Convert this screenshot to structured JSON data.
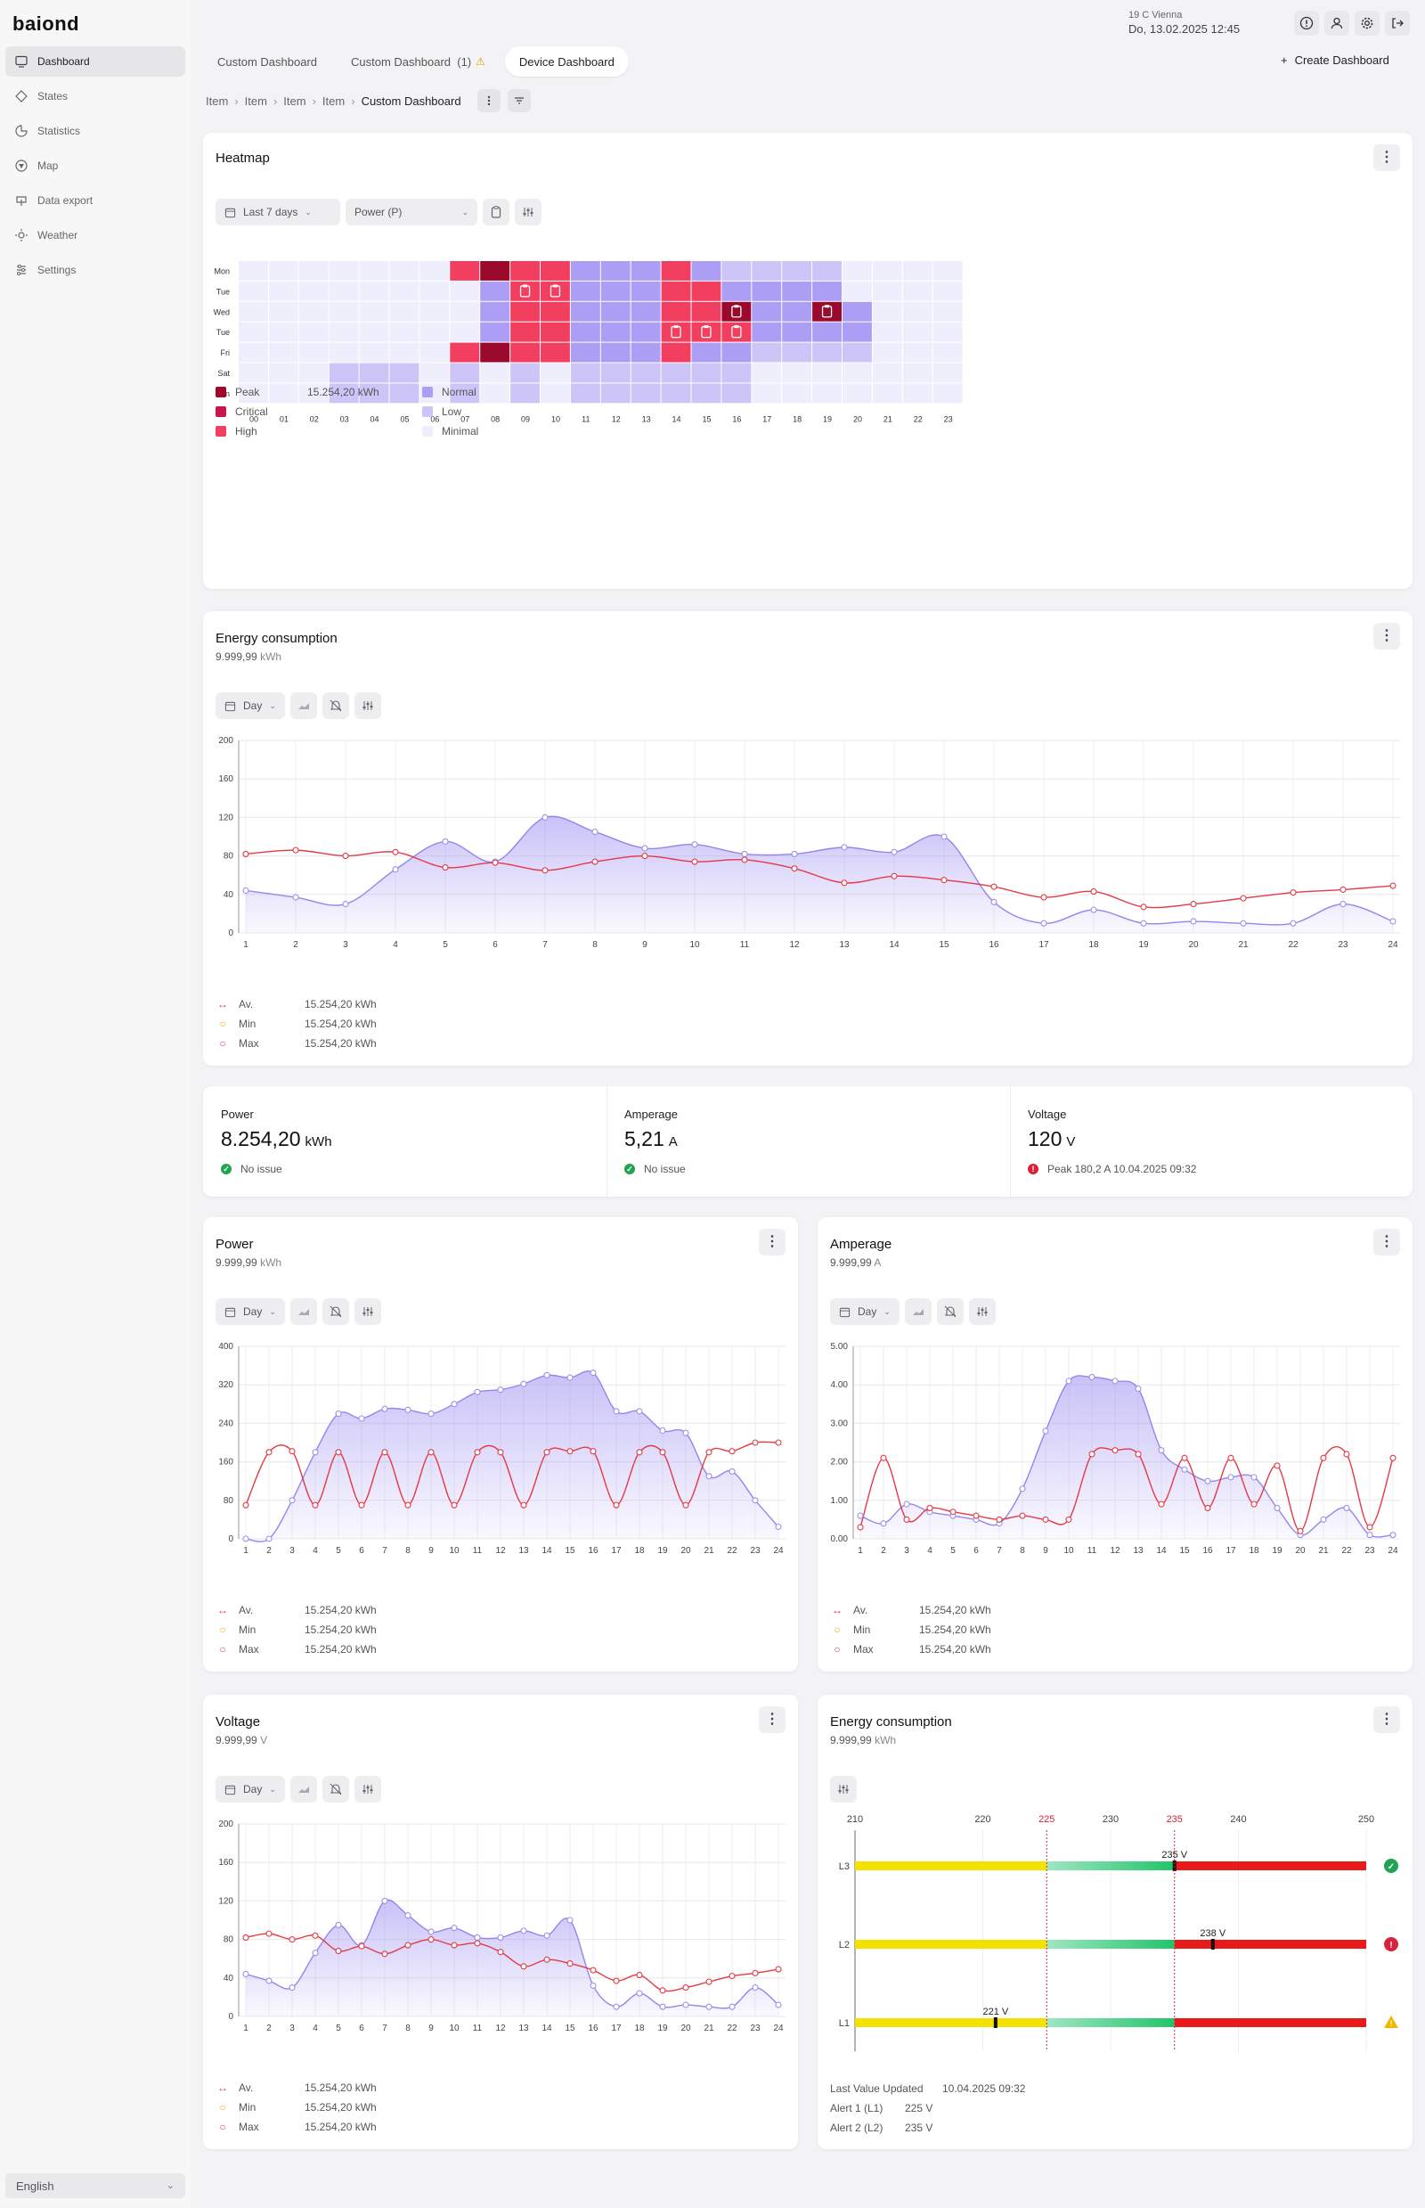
{
  "app": {
    "logo": "baiond"
  },
  "sidebar": {
    "items": [
      {
        "label": "Dashboard",
        "icon": "dashboard-icon",
        "active": true
      },
      {
        "label": "States",
        "icon": "diamond-icon"
      },
      {
        "label": "Statistics",
        "icon": "pie-chart-icon"
      },
      {
        "label": "Map",
        "icon": "map-icon"
      },
      {
        "label": "Data export",
        "icon": "export-icon"
      },
      {
        "label": "Weather",
        "icon": "sun-icon"
      },
      {
        "label": "Settings",
        "icon": "sliders-icon"
      }
    ],
    "language": "English"
  },
  "header": {
    "weather": "19 C Vienna",
    "datetime": "Do, 13.02.2025 12:45",
    "icons": [
      "info-icon",
      "user-icon",
      "gear-icon",
      "logout-icon"
    ]
  },
  "tabs": [
    {
      "label": "Custom Dashboard"
    },
    {
      "label": "Custom Dashboard",
      "count": "(1)",
      "warn": true
    },
    {
      "label": "Device Dashboard",
      "active": true
    }
  ],
  "create_label": "Create Dashboard",
  "breadcrumb": [
    "Item",
    "Item",
    "Item",
    "Item",
    "Custom Dashboard"
  ],
  "heatmap": {
    "title": "Heatmap",
    "range_label": "Last 7 days",
    "metric_label": "Power (P)",
    "days": [
      "Mon",
      "Tue",
      "Wed",
      "Tue",
      "Fri",
      "Sat",
      "Sun"
    ],
    "hours": [
      "00",
      "01",
      "02",
      "03",
      "04",
      "05",
      "06",
      "07",
      "08",
      "09",
      "10",
      "11",
      "12",
      "13",
      "14",
      "15",
      "16",
      "17",
      "18",
      "19",
      "20",
      "21",
      "22",
      "23"
    ],
    "levels": {
      "peak": "#9b0a2c",
      "critical": "#c8174a",
      "high": "#f23f60",
      "normal": "#ac9ef5",
      "low": "#cdc5f8",
      "minimal": "#efeefc",
      "empty": "#f4f3fb"
    },
    "grid": [
      "MMMMMMMHPHHNNNHNLLLLMMMM",
      "MMMMMMMMNHHNNNHHNNNNMMMM",
      "MMMMMMMMNHHNNNHHPNNPNMMM",
      "MMMMMMMMNHHNNNHHHNNNNMMM",
      "MMMMMMMHPHHNNNHNNLLLLMMM",
      "MMMLLLMLMLMLLLLLLMMMMMMM",
      "MMMLLLMLMLMLLLLLLMMMMMMM"
    ],
    "badges": [
      [
        1,
        9
      ],
      [
        1,
        10
      ],
      [
        2,
        16
      ],
      [
        2,
        19
      ],
      [
        3,
        14
      ],
      [
        3,
        15
      ],
      [
        3,
        16
      ]
    ],
    "legend": [
      {
        "label": "Peak",
        "value": "15.254,20 kWh"
      },
      {
        "label": "Critical"
      },
      {
        "label": "High"
      },
      {
        "label": "Normal"
      },
      {
        "label": "Low"
      },
      {
        "label": "Minimal"
      }
    ]
  },
  "energy": {
    "title": "Energy consumption",
    "value": "9.999,99",
    "unit": "kWh",
    "period": "Day",
    "legend": [
      {
        "label": "Av.",
        "value": "15.254,20 kWh"
      },
      {
        "label": "Min",
        "value": "15.254,20 kWh"
      },
      {
        "label": "Max",
        "value": "15.254,20 kWh"
      }
    ]
  },
  "kpis": [
    {
      "label": "Power",
      "value": "8.254,20",
      "unit": "kWh",
      "status": "No issue",
      "ok": true
    },
    {
      "label": "Amperage",
      "value": "5,21",
      "unit": "A",
      "status": "No issue",
      "ok": true
    },
    {
      "label": "Voltage",
      "value": "120",
      "unit": "V",
      "status": "Peak 180,2 A 10.04.2025 09:32",
      "ok": false
    }
  ],
  "power": {
    "title": "Power",
    "value": "9.999,99",
    "unit": "kWh",
    "period": "Day",
    "legend": [
      {
        "label": "Av.",
        "value": "15.254,20 kWh"
      },
      {
        "label": "Min",
        "value": "15.254,20 kWh"
      },
      {
        "label": "Max",
        "value": "15.254,20 kWh"
      }
    ]
  },
  "amperage": {
    "title": "Amperage",
    "value": "9.999,99",
    "unit": "A",
    "period": "Day",
    "legend": [
      {
        "label": "Av.",
        "value": "15.254,20 kWh"
      },
      {
        "label": "Min",
        "value": "15.254,20 kWh"
      },
      {
        "label": "Max",
        "value": "15.254,20 kWh"
      }
    ]
  },
  "voltage": {
    "title": "Voltage",
    "value": "9.999,99",
    "unit": "V",
    "period": "Day",
    "legend": [
      {
        "label": "Av.",
        "value": "15.254,20 kWh"
      },
      {
        "label": "Min",
        "value": "15.254,20 kWh"
      },
      {
        "label": "Max",
        "value": "15.254,20 kWh"
      }
    ]
  },
  "energy2": {
    "title": "Energy consumption",
    "value": "9.999,99",
    "unit": "kWh",
    "footer": [
      {
        "label": "Last Value Updated",
        "value": "10.04.2025 09:32"
      },
      {
        "label": "Alert 1 (L1)",
        "value": "225 V"
      },
      {
        "label": "Alert 2 (L2)",
        "value": "235 V"
      }
    ]
  },
  "chart_data": [
    {
      "type": "area",
      "title": "Energy consumption",
      "x": [
        1,
        2,
        3,
        4,
        5,
        6,
        7,
        8,
        9,
        10,
        11,
        12,
        13,
        14,
        15,
        16,
        17,
        18,
        19,
        20,
        21,
        22,
        23,
        24
      ],
      "ylim": [
        0,
        200
      ],
      "yticks": [
        0,
        40,
        80,
        120,
        160,
        200
      ],
      "series": [
        {
          "name": "Area",
          "color": "#8f7ff0",
          "values": [
            44,
            37,
            30,
            66,
            95,
            74,
            120,
            105,
            88,
            92,
            82,
            82,
            89,
            84,
            100,
            32,
            10,
            24,
            10,
            12,
            10,
            10,
            30,
            12
          ]
        },
        {
          "name": "Line",
          "color": "#e53945",
          "values": [
            82,
            86,
            80,
            84,
            68,
            73,
            65,
            74,
            80,
            74,
            76,
            67,
            52,
            59,
            55,
            48,
            37,
            43,
            27,
            30,
            36,
            42,
            45,
            49
          ]
        }
      ]
    },
    {
      "type": "area",
      "title": "Power",
      "x": [
        1,
        2,
        3,
        4,
        5,
        6,
        7,
        8,
        9,
        10,
        11,
        12,
        13,
        14,
        15,
        16,
        17,
        18,
        19,
        20,
        21,
        22,
        23,
        24
      ],
      "ylim": [
        0,
        400
      ],
      "yticks": [
        0,
        80,
        160,
        240,
        320,
        400
      ],
      "series": [
        {
          "name": "Area",
          "color": "#8f7ff0",
          "values": [
            0,
            0,
            80,
            180,
            260,
            250,
            270,
            268,
            260,
            280,
            305,
            310,
            322,
            340,
            335,
            345,
            265,
            265,
            225,
            220,
            130,
            140,
            80,
            25
          ]
        },
        {
          "name": "Line",
          "color": "#e53945",
          "values": [
            70,
            180,
            182,
            70,
            180,
            70,
            180,
            70,
            180,
            70,
            180,
            180,
            70,
            180,
            182,
            182,
            70,
            180,
            180,
            70,
            180,
            182,
            200,
            200
          ]
        }
      ]
    },
    {
      "type": "area",
      "title": "Amperage",
      "x": [
        1,
        2,
        3,
        4,
        5,
        6,
        7,
        8,
        9,
        10,
        11,
        12,
        13,
        14,
        15,
        16,
        17,
        18,
        19,
        20,
        21,
        22,
        23,
        24
      ],
      "ylim": [
        0,
        5
      ],
      "yticks": [
        0,
        1,
        2,
        3,
        4,
        5
      ],
      "series": [
        {
          "name": "Area",
          "color": "#8f7ff0",
          "values": [
            0.6,
            0.4,
            0.9,
            0.7,
            0.6,
            0.5,
            0.4,
            1.3,
            2.8,
            4.1,
            4.2,
            4.1,
            3.9,
            2.3,
            1.8,
            1.5,
            1.6,
            1.6,
            0.8,
            0.1,
            0.5,
            0.8,
            0.1,
            0.1
          ]
        },
        {
          "name": "Line",
          "color": "#e53945",
          "values": [
            0.3,
            2.1,
            0.5,
            0.8,
            0.7,
            0.6,
            0.5,
            0.6,
            0.5,
            0.5,
            2.2,
            2.3,
            2.2,
            0.9,
            2.1,
            0.8,
            2.1,
            0.9,
            1.9,
            0.2,
            2.1,
            2.2,
            0.3,
            2.1
          ]
        }
      ]
    },
    {
      "type": "area",
      "title": "Voltage",
      "x": [
        1,
        2,
        3,
        4,
        5,
        6,
        7,
        8,
        9,
        10,
        11,
        12,
        13,
        14,
        15,
        16,
        17,
        18,
        19,
        20,
        21,
        22,
        23,
        24
      ],
      "ylim": [
        0,
        200
      ],
      "yticks": [
        0,
        40,
        80,
        120,
        160,
        200
      ],
      "series": [
        {
          "name": "Area",
          "color": "#8f7ff0",
          "values": [
            44,
            37,
            30,
            66,
            95,
            74,
            120,
            105,
            88,
            92,
            82,
            82,
            89,
            84,
            100,
            32,
            10,
            24,
            10,
            12,
            10,
            10,
            30,
            12
          ]
        },
        {
          "name": "Line",
          "color": "#e53945",
          "values": [
            82,
            86,
            80,
            84,
            68,
            73,
            65,
            74,
            80,
            74,
            76,
            67,
            52,
            59,
            55,
            48,
            37,
            43,
            27,
            30,
            36,
            42,
            45,
            49
          ]
        }
      ]
    },
    {
      "type": "bar",
      "title": "Energy consumption",
      "orientation": "horizontal",
      "categories": [
        "L3",
        "L2",
        "L1"
      ],
      "xlim": [
        210,
        250
      ],
      "xticks": [
        210,
        220,
        225,
        230,
        235,
        240,
        250
      ],
      "thresholds": [
        225,
        235
      ],
      "values": [
        235,
        238,
        221
      ],
      "value_labels": [
        "235 V",
        "238 V",
        "221 V"
      ],
      "status": [
        "ok",
        "error",
        "warning"
      ],
      "zones": [
        {
          "from": 210,
          "to": 225,
          "color": "#f2e200"
        },
        {
          "from": 225,
          "to": 235,
          "color": "#3fcf7e"
        },
        {
          "from": 235,
          "to": 250,
          "color": "#e81a1a"
        }
      ]
    }
  ]
}
